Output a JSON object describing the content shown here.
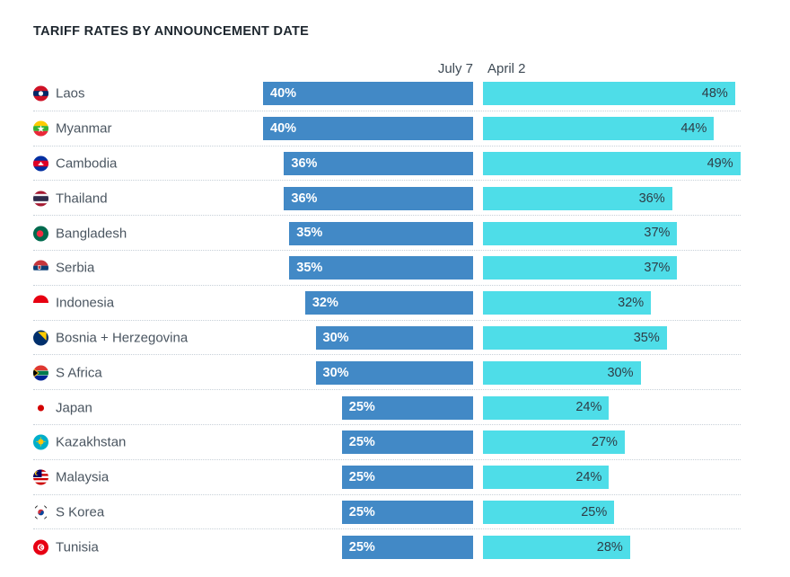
{
  "title": "TARIFF RATES BY ANNOUNCEMENT DATE",
  "columns": {
    "left_header": "July 7",
    "right_header": "April 2"
  },
  "chart_data": {
    "type": "bar",
    "orientation": "horizontal",
    "title": "TARIFF RATES BY ANNOUNCEMENT DATE",
    "value_suffix": "%",
    "categories": [
      "Laos",
      "Myanmar",
      "Cambodia",
      "Thailand",
      "Bangladesh",
      "Serbia",
      "Indonesia",
      "Bosnia + Herzegovina",
      "S Africa",
      "Japan",
      "Kazakhstan",
      "Malaysia",
      "S Korea",
      "Tunisia"
    ],
    "flag_icons": [
      "flag-laos-icon",
      "flag-myanmar-icon",
      "flag-cambodia-icon",
      "flag-thailand-icon",
      "flag-bangladesh-icon",
      "flag-serbia-icon",
      "flag-indonesia-icon",
      "flag-bosnia-herzegovina-icon",
      "flag-south-africa-icon",
      "flag-japan-icon",
      "flag-kazakhstan-icon",
      "flag-malaysia-icon",
      "flag-south-korea-icon",
      "flag-tunisia-icon"
    ],
    "series": [
      {
        "name": "July 7",
        "values": [
          40,
          40,
          36,
          36,
          35,
          35,
          32,
          30,
          30,
          25,
          25,
          25,
          25,
          25
        ],
        "bar_color": "#4289c6",
        "label_color": "#ffffff"
      },
      {
        "name": "April 2",
        "values": [
          48,
          44,
          49,
          36,
          37,
          37,
          32,
          35,
          30,
          24,
          27,
          24,
          25,
          28
        ],
        "bar_color": "#4edde8",
        "label_color": "#2e3c46"
      }
    ],
    "axis_max": 49,
    "grid": "dotted-row-separators",
    "legend_position": "column-headers-top"
  },
  "style_colors": {
    "title_text": "#1d262e",
    "header_text": "#3e4a55",
    "country_text": "#4a5560",
    "separator": "#c7d0d8",
    "background": "#ffffff"
  }
}
